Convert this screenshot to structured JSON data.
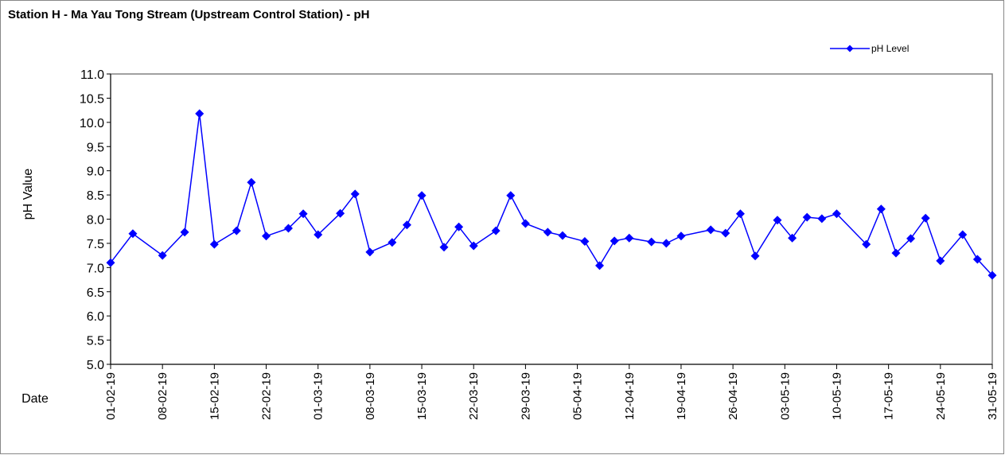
{
  "chart_data": {
    "type": "line",
    "title": "Station H - Ma Yau Tong Stream (Upstream Control Station) - pH",
    "xlabel": "Date",
    "ylabel": "pH Value",
    "x": [
      "01-02-19",
      "04-02-19",
      "08-02-19",
      "11-02-19",
      "13-02-19",
      "15-02-19",
      "18-02-19",
      "20-02-19",
      "22-02-19",
      "25-02-19",
      "27-02-19",
      "01-03-19",
      "04-03-19",
      "06-03-19",
      "08-03-19",
      "11-03-19",
      "13-03-19",
      "15-03-19",
      "18-03-19",
      "20-03-19",
      "22-03-19",
      "25-03-19",
      "27-03-19",
      "29-03-19",
      "01-04-19",
      "03-04-19",
      "06-04-19",
      "08-04-19",
      "10-04-19",
      "12-04-19",
      "15-04-19",
      "17-04-19",
      "19-04-19",
      "23-04-19",
      "25-04-19",
      "27-04-19",
      "29-04-19",
      "02-05-19",
      "04-05-19",
      "06-05-19",
      "08-05-19",
      "10-05-19",
      "14-05-19",
      "16-05-19",
      "18-05-19",
      "20-05-19",
      "22-05-19",
      "24-05-19",
      "27-05-19",
      "29-05-19",
      "31-05-19"
    ],
    "series": [
      {
        "name": "pH Level",
        "color": "#0000ff",
        "values": [
          7.1,
          7.7,
          7.25,
          7.73,
          10.18,
          7.48,
          7.76,
          8.76,
          7.65,
          7.81,
          8.11,
          7.68,
          8.12,
          8.52,
          7.32,
          7.52,
          7.88,
          8.49,
          7.42,
          7.84,
          7.45,
          7.76,
          8.49,
          7.91,
          7.73,
          7.66,
          7.54,
          7.04,
          7.55,
          7.61,
          7.53,
          7.5,
          7.65,
          7.78,
          7.71,
          8.11,
          7.24,
          7.98,
          7.61,
          8.04,
          8.01,
          8.11,
          7.48,
          8.21,
          7.3,
          7.6,
          8.02,
          7.14,
          7.68,
          7.17,
          6.84
        ]
      }
    ],
    "xlim": [
      "01-02-19",
      "31-05-19"
    ],
    "xticks": [
      "01-02-19",
      "08-02-19",
      "15-02-19",
      "22-02-19",
      "01-03-19",
      "08-03-19",
      "15-03-19",
      "22-03-19",
      "29-03-19",
      "05-04-19",
      "12-04-19",
      "19-04-19",
      "26-04-19",
      "03-05-19",
      "10-05-19",
      "17-05-19",
      "24-05-19",
      "31-05-19"
    ],
    "ylim": [
      5,
      11
    ],
    "yticks": [
      {
        "value": 5,
        "label": "5.0"
      },
      5.5,
      {
        "value": 6,
        "label": "6.0"
      },
      6.5,
      {
        "value": 7,
        "label": "7.0"
      },
      7.5,
      {
        "value": 8,
        "label": "8.0"
      },
      8.5,
      {
        "value": 9,
        "label": "9.0"
      },
      9.5,
      {
        "value": 10,
        "label": "10.0"
      },
      10.5,
      {
        "value": 11,
        "label": "11.0"
      }
    ],
    "legend": "top-right",
    "grid": false
  }
}
